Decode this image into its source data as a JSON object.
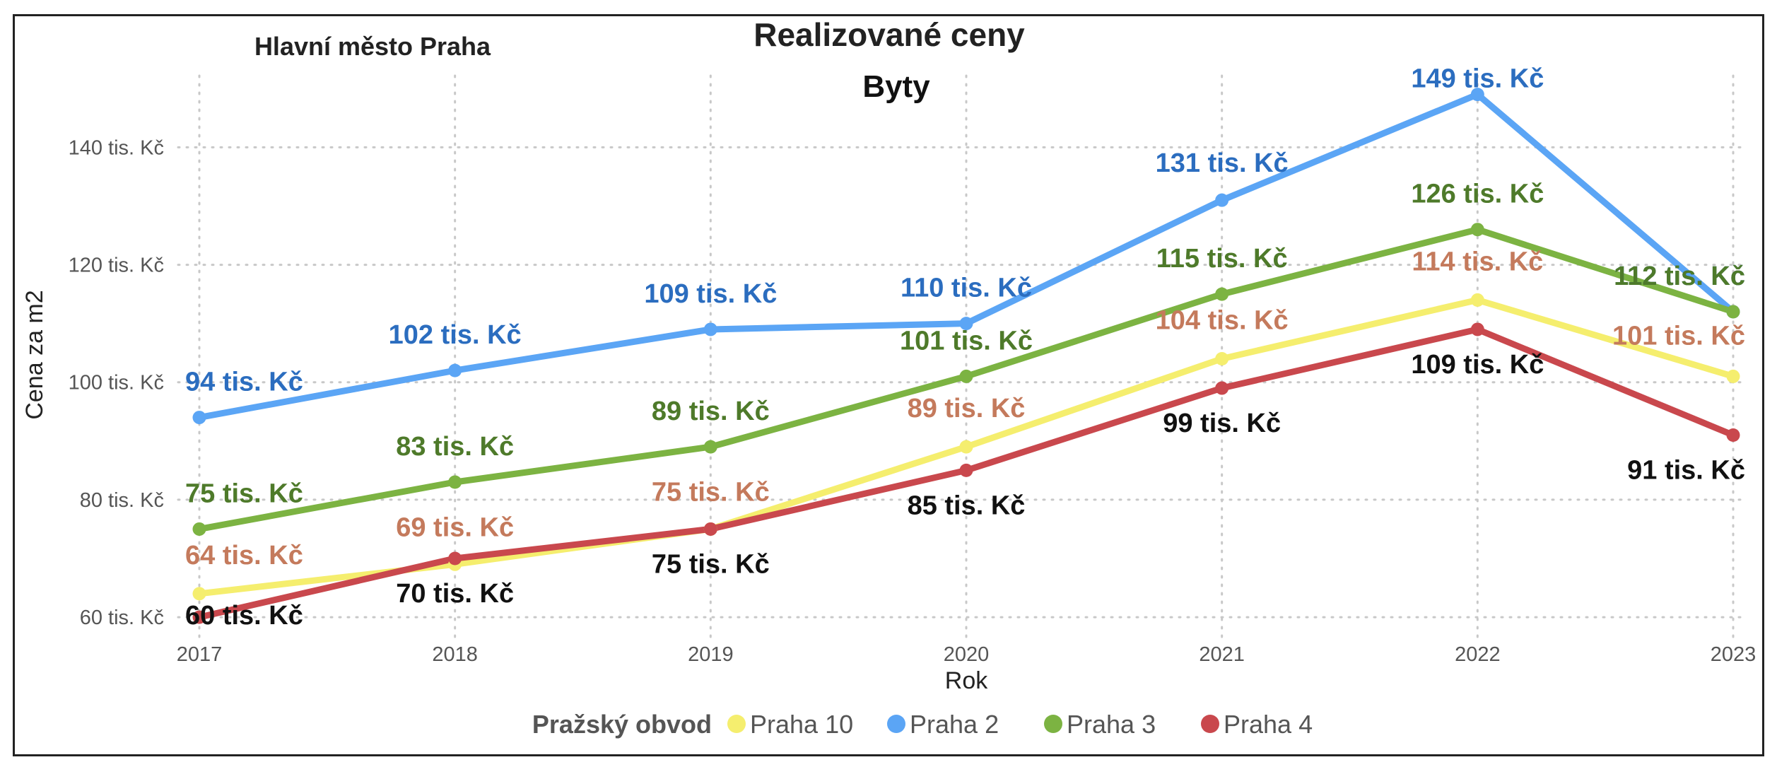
{
  "chart_data": {
    "type": "line",
    "title": "Realizované ceny",
    "subtitle": "Byty",
    "region_label": "Hlavní město Praha",
    "xlabel": "Rok",
    "ylabel": "Cena za m2",
    "x": [
      2017,
      2018,
      2019,
      2020,
      2021,
      2022,
      2023
    ],
    "x_tick_labels": [
      "2017",
      "2018",
      "2019",
      "2020",
      "2021",
      "2022",
      "2023"
    ],
    "ylim": [
      57,
      151
    ],
    "y_ticks": [
      60,
      80,
      100,
      120,
      140
    ],
    "y_tick_labels": [
      "60 tis. Kč",
      "80 tis. Kč",
      "100 tis. Kč",
      "120 tis. Kč",
      "140 tis. Kč"
    ],
    "grid": true,
    "legend": {
      "title": "Pražský obvod",
      "placement": "bottom"
    },
    "series": [
      {
        "name": "Praha 10",
        "color": "#F5EE6E",
        "label_color": "#C47A5C",
        "values": [
          64,
          69,
          75,
          89,
          104,
          114,
          101
        ],
        "labels": [
          "64 tis. Kč",
          "69 tis. Kč",
          "75 tis. Kč",
          "89 tis. Kč",
          "104 tis. Kč",
          "114 tis. Kč",
          "101 tis. Kč"
        ]
      },
      {
        "name": "Praha 2",
        "color": "#5BA5F5",
        "label_color": "#2B6DBF",
        "values": [
          94,
          102,
          109,
          110,
          131,
          149,
          112
        ],
        "labels": [
          "94 tis. Kč",
          "102 tis. Kč",
          "109 tis. Kč",
          "110 tis. Kč",
          "131 tis. Kč",
          "149 tis. Kč",
          "112 tis. Kč"
        ]
      },
      {
        "name": "Praha 3",
        "color": "#7CB342",
        "label_color": "#4E7A2A",
        "values": [
          75,
          83,
          89,
          101,
          115,
          126,
          112
        ],
        "labels": [
          "75 tis. Kč",
          "83 tis. Kč",
          "89 tis. Kč",
          "101 tis. Kč",
          "115 tis. Kč",
          "126 tis. Kč",
          "112 tis. Kč"
        ]
      },
      {
        "name": "Praha 4",
        "color": "#C9484D",
        "label_color": "#111111",
        "values": [
          60,
          70,
          75,
          85,
          99,
          109,
          91
        ],
        "labels": [
          "60 tis. Kč",
          "70 tis. Kč",
          "75 tis. Kč",
          "85 tis. Kč",
          "99 tis. Kč",
          "109 tis. Kč",
          "91 tis. Kč"
        ]
      }
    ]
  }
}
